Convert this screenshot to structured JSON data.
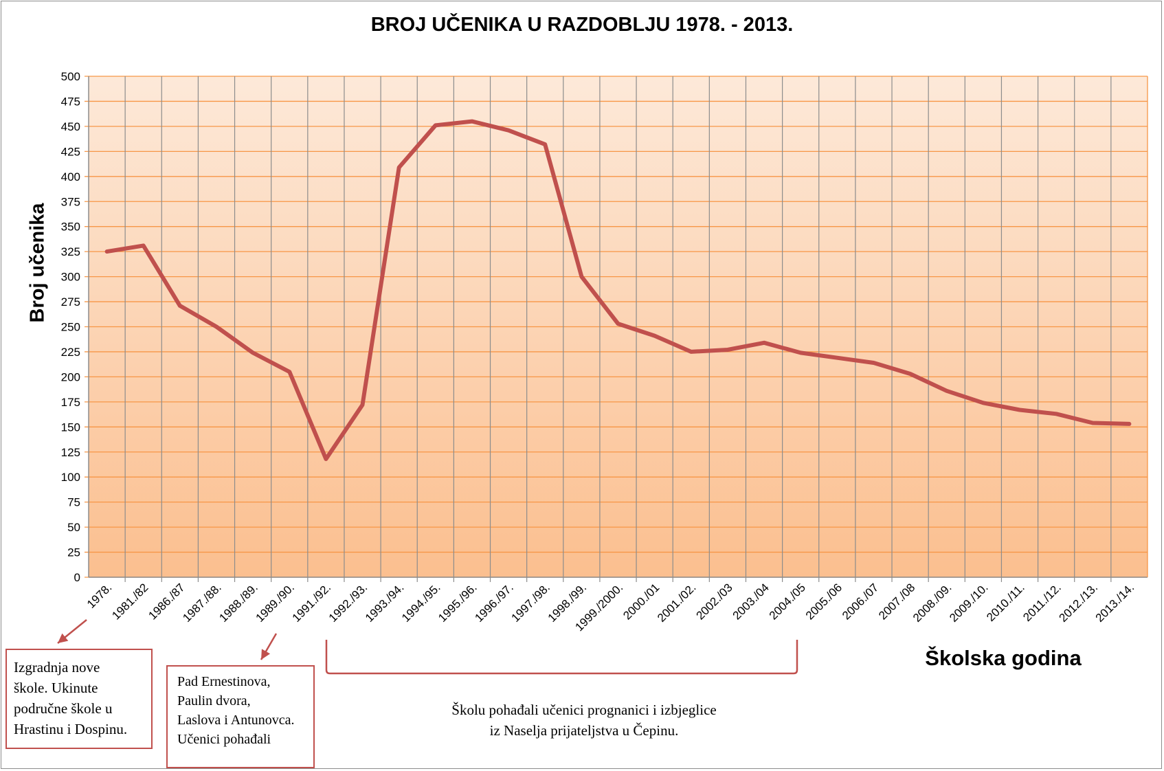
{
  "chart_data": {
    "type": "line",
    "title": "BROJ UČENIKA U RAZDOBLJU 1978. - 2013.",
    "xlabel": "Školska godina",
    "ylabel": "Broj učenika",
    "ylim": [
      0,
      500
    ],
    "yticks": [
      0,
      25,
      50,
      75,
      100,
      125,
      150,
      175,
      200,
      225,
      250,
      275,
      300,
      325,
      350,
      375,
      400,
      425,
      450,
      475,
      500
    ],
    "grid": true,
    "categories": [
      "1978.",
      "1981./82",
      "1986./87",
      "1987./88.",
      "1988./89.",
      "1989./90.",
      "1991./92.",
      "1992./93.",
      "1993./94.",
      "1994./95.",
      "1995./96.",
      "1996./97.",
      "1997./98.",
      "1998./99.",
      "1999./2000.",
      "2000./01",
      "2001./02.",
      "2002./03",
      "2003./04",
      "2004./05",
      "2005./06",
      "2006./07",
      "2007./08",
      "2008./09.",
      "2009./10.",
      "2010./11.",
      "2011./12.",
      "2012./13.",
      "2013./14."
    ],
    "values": [
      325,
      331,
      271,
      250,
      224,
      205,
      118,
      172,
      409,
      451,
      455,
      446,
      432,
      300,
      253,
      241,
      225,
      227,
      234,
      224,
      219,
      214,
      203,
      186,
      174,
      167,
      163,
      154,
      153
    ],
    "colors": {
      "line": "#c0504d",
      "grid": "#f79646",
      "bg_top": "#fde9d9",
      "bg_bottom": "#fbbf8f",
      "annotation": "#c0504d"
    }
  },
  "annotations": {
    "note1": [
      "Izgradnja nove",
      "škole. Ukinute",
      "područne škole u",
      "Hrastinu i Dospinu."
    ],
    "note2": [
      "Pad Ernestinova,",
      "Paulin dvora,",
      "Laslova i Antunovca.",
      "Učenici pohađali"
    ],
    "note3": [
      "Školu pohađali učenici prognanici i izbjeglice",
      "iz Naselja prijateljstva u Čepinu."
    ]
  }
}
